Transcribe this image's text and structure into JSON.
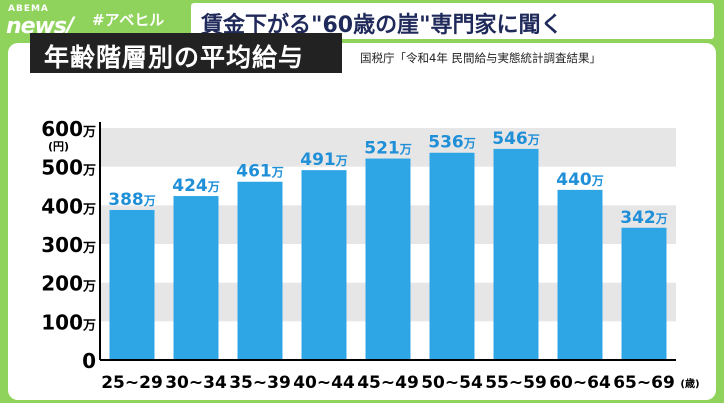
{
  "brand": {
    "logo_top": "ABEMA",
    "logo_main": "news/",
    "hashtag": "#アベヒル"
  },
  "headline": "賃金下がる\"60歳の崖\"専門家に聞く",
  "chart_title": "年齢階層別の平均給与",
  "source": "国税庁「令和4年 民間給与実態統計調査結果」",
  "colors": {
    "bar": "#2ea6e6",
    "label": "#1f8fd8",
    "band": "#e6e6e6",
    "axis": "#000000"
  },
  "chart_data": {
    "type": "bar",
    "title": "年齢階層別の平均給与",
    "categories": [
      "25~29",
      "30~34",
      "35~39",
      "40~44",
      "45~49",
      "50~54",
      "55~59",
      "60~64",
      "65~69"
    ],
    "values": [
      388,
      424,
      461,
      491,
      521,
      536,
      546,
      440,
      342
    ],
    "value_labels": [
      "388万",
      "424万",
      "461万",
      "491万",
      "521万",
      "536万",
      "546万",
      "440万",
      "342万"
    ],
    "ylim": [
      0,
      600
    ],
    "y_ticks": [
      0,
      100,
      200,
      300,
      400,
      500,
      600
    ],
    "y_tick_labels": [
      "0",
      "100万",
      "200万",
      "300万",
      "400万",
      "500万",
      "600万"
    ],
    "y_unit": "(円)",
    "x_unit": "(歳)"
  }
}
